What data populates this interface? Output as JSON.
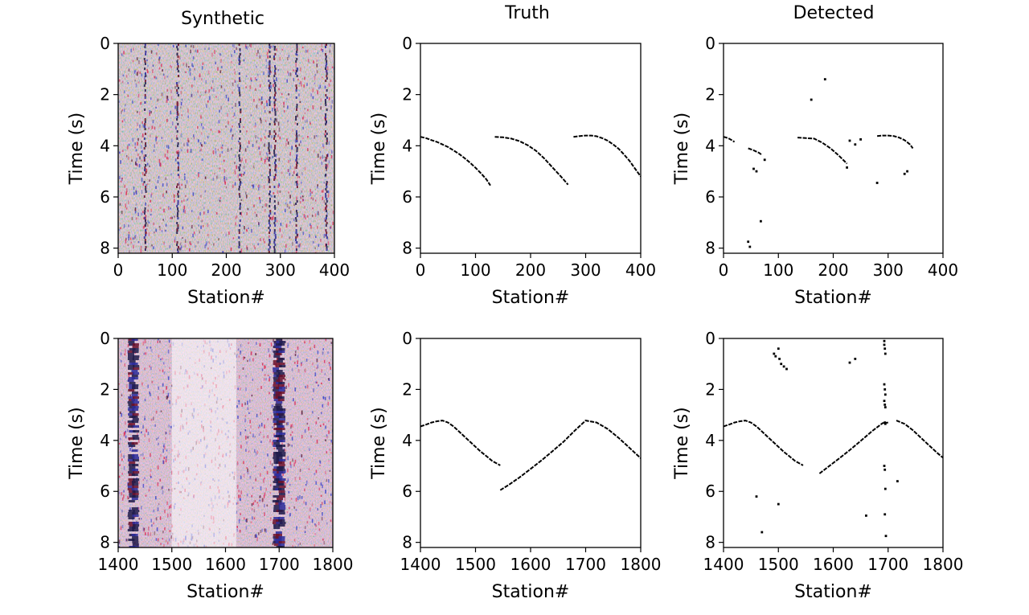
{
  "figure": {
    "column_titles": [
      "Synthetic",
      "Truth",
      "Detected"
    ]
  },
  "chart_data": [
    {
      "id": "synthetic-top",
      "type": "heatmap",
      "title": "Synthetic",
      "xlabel": "Station#",
      "ylabel": "Time (s)",
      "xlim": [
        0,
        400
      ],
      "ylim": [
        8.2,
        0
      ],
      "xticks": [
        0,
        100,
        200,
        300,
        400
      ],
      "yticks": [
        0,
        2,
        4,
        6,
        8
      ],
      "grid": false,
      "colormap": [
        "#2b2fd9",
        "#ffffff",
        "#e5203a"
      ],
      "description_values": {
        "dark_station_bands": [
          50,
          110,
          225,
          280,
          290,
          330,
          385
        ],
        "noise_level": "high"
      }
    },
    {
      "id": "truth-top",
      "type": "scatter",
      "title": "Truth",
      "xlabel": "Station#",
      "ylabel": "Time (s)",
      "xlim": [
        0,
        400
      ],
      "ylim": [
        8.2,
        0
      ],
      "xticks": [
        0,
        100,
        200,
        300,
        400
      ],
      "yticks": [
        0,
        2,
        4,
        6,
        8
      ],
      "grid": false,
      "segments": [
        {
          "x": [
            0,
            10,
            20,
            30,
            40,
            50,
            60,
            70,
            80,
            90,
            100,
            110,
            120,
            127
          ],
          "y": [
            3.65,
            3.7,
            3.78,
            3.85,
            3.95,
            4.05,
            4.18,
            4.32,
            4.48,
            4.66,
            4.86,
            5.08,
            5.32,
            5.55
          ]
        },
        {
          "x": [
            135,
            150,
            165,
            180,
            195,
            210,
            225,
            240,
            255,
            268
          ],
          "y": [
            3.65,
            3.67,
            3.72,
            3.82,
            3.98,
            4.2,
            4.5,
            4.85,
            5.2,
            5.52
          ]
        },
        {
          "x": [
            278,
            290,
            300,
            310,
            320,
            330,
            340,
            350,
            360,
            370,
            380,
            390,
            400
          ],
          "y": [
            3.65,
            3.62,
            3.6,
            3.6,
            3.63,
            3.7,
            3.8,
            3.95,
            4.12,
            4.35,
            4.6,
            4.9,
            5.2
          ]
        }
      ]
    },
    {
      "id": "detected-top",
      "type": "scatter",
      "title": "Detected",
      "xlabel": "Station#",
      "ylabel": "Time (s)",
      "xlim": [
        0,
        400
      ],
      "ylim": [
        8.2,
        0
      ],
      "xticks": [
        0,
        100,
        200,
        300,
        400
      ],
      "yticks": [
        0,
        2,
        4,
        6,
        8
      ],
      "grid": false,
      "segments": [
        {
          "x": [
            0,
            5,
            10,
            15,
            20
          ],
          "y": [
            3.65,
            3.68,
            3.72,
            3.78,
            3.85
          ]
        },
        {
          "x": [
            45,
            55,
            65,
            70
          ],
          "y": [
            4.1,
            4.18,
            4.28,
            4.36
          ]
        },
        {
          "x": [
            135,
            150,
            165,
            180,
            195,
            210,
            225
          ],
          "y": [
            3.68,
            3.7,
            3.72,
            3.88,
            4.1,
            4.38,
            4.7
          ]
        },
        {
          "x": [
            280,
            290,
            300,
            310,
            320,
            330,
            340,
            345
          ],
          "y": [
            3.62,
            3.6,
            3.6,
            3.62,
            3.68,
            3.78,
            3.95,
            4.1
          ]
        }
      ],
      "points": {
        "x": [
          45,
          48,
          55,
          60,
          75,
          68,
          160,
          185,
          230,
          240,
          250,
          280,
          330,
          335,
          225
        ],
        "y": [
          7.75,
          7.95,
          4.9,
          5.0,
          4.55,
          6.95,
          2.2,
          1.4,
          3.8,
          3.95,
          3.75,
          5.45,
          5.1,
          5.0,
          4.85
        ]
      }
    },
    {
      "id": "synthetic-bottom",
      "type": "heatmap",
      "title": "",
      "xlabel": "Station#",
      "ylabel": "Time (s)",
      "xlim": [
        1400,
        1800
      ],
      "ylim": [
        8.2,
        0
      ],
      "xticks": [
        1400,
        1500,
        1600,
        1700,
        1800
      ],
      "yticks": [
        0,
        2,
        4,
        6,
        8
      ],
      "grid": false,
      "colormap": [
        "#2b2fd9",
        "#ffffff",
        "#e5203a"
      ],
      "description_values": {
        "dark_station_bands": [
          1425,
          1432,
          1695,
          1700,
          1705
        ],
        "noise_level": "high"
      }
    },
    {
      "id": "truth-bottom",
      "type": "scatter",
      "title": "",
      "xlabel": "Station#",
      "ylabel": "Time (s)",
      "xlim": [
        1400,
        1800
      ],
      "ylim": [
        8.2,
        0
      ],
      "xticks": [
        1400,
        1500,
        1600,
        1700,
        1800
      ],
      "yticks": [
        0,
        2,
        4,
        6,
        8
      ],
      "grid": false,
      "segments": [
        {
          "x": [
            1400,
            1410,
            1420,
            1430,
            1440,
            1450,
            1460,
            1470,
            1480,
            1490,
            1500,
            1510,
            1520,
            1530,
            1545
          ],
          "y": [
            3.45,
            3.38,
            3.3,
            3.25,
            3.22,
            3.3,
            3.45,
            3.65,
            3.85,
            4.05,
            4.25,
            4.45,
            4.62,
            4.8,
            4.98
          ]
        },
        {
          "x": [
            1545,
            1560,
            1580,
            1600,
            1620,
            1640,
            1660,
            1680,
            1700,
            1720,
            1740,
            1760,
            1780,
            1800
          ],
          "y": [
            5.95,
            5.75,
            5.45,
            5.12,
            4.78,
            4.42,
            4.05,
            3.62,
            3.22,
            3.3,
            3.55,
            3.9,
            4.3,
            4.7
          ]
        }
      ]
    },
    {
      "id": "detected-bottom",
      "type": "scatter",
      "title": "",
      "xlabel": "Station#",
      "ylabel": "Time (s)",
      "xlim": [
        1400,
        1800
      ],
      "ylim": [
        8.2,
        0
      ],
      "xticks": [
        1400,
        1500,
        1600,
        1700,
        1800
      ],
      "yticks": [
        0,
        2,
        4,
        6,
        8
      ],
      "grid": false,
      "segments": [
        {
          "x": [
            1400,
            1410,
            1420,
            1430,
            1440,
            1450,
            1460,
            1470,
            1480,
            1490,
            1500,
            1510,
            1520,
            1530,
            1545
          ],
          "y": [
            3.45,
            3.38,
            3.3,
            3.25,
            3.22,
            3.3,
            3.45,
            3.65,
            3.85,
            4.05,
            4.25,
            4.45,
            4.62,
            4.8,
            4.98
          ]
        },
        {
          "x": [
            1575,
            1590,
            1610,
            1630,
            1650,
            1670,
            1690,
            1700
          ],
          "y": [
            5.3,
            5.05,
            4.72,
            4.38,
            4.02,
            3.65,
            3.32,
            3.3
          ]
        },
        {
          "x": [
            1715,
            1730,
            1745,
            1760,
            1775,
            1790,
            1800
          ],
          "y": [
            3.22,
            3.35,
            3.6,
            3.9,
            4.2,
            4.5,
            4.68
          ]
        }
      ],
      "points": {
        "x": [
          1492,
          1495,
          1500,
          1502,
          1505,
          1510,
          1515,
          1630,
          1640,
          1693,
          1693,
          1694,
          1695,
          1693,
          1694,
          1695,
          1693,
          1694,
          1695,
          1693,
          1694,
          1695,
          1694,
          1696,
          1694,
          1695,
          1717,
          1460,
          1470,
          1500,
          1660
        ],
        "y": [
          0.6,
          0.7,
          0.4,
          0.8,
          1.0,
          1.1,
          1.2,
          0.95,
          0.8,
          0.1,
          0.25,
          0.4,
          0.6,
          1.8,
          2.0,
          2.2,
          2.45,
          2.6,
          2.7,
          5.0,
          5.15,
          5.9,
          6.9,
          7.75,
          3.3,
          3.35,
          5.6,
          6.2,
          7.6,
          6.5,
          6.95
        ]
      }
    }
  ]
}
